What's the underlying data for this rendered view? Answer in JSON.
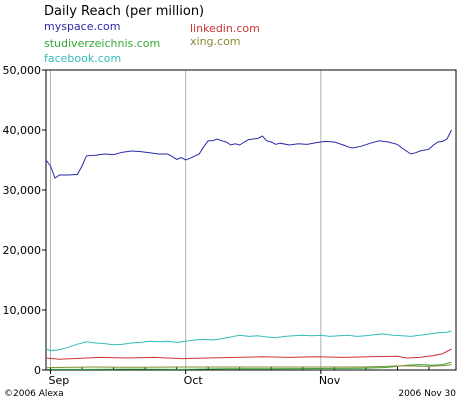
{
  "chart_data": {
    "type": "line",
    "title": "Daily Reach (per million)",
    "y_ticks": [
      "50,000",
      "40,000",
      "30,000",
      "20,000",
      "10,000",
      "0"
    ],
    "y_tick_values": [
      50000,
      40000,
      30000,
      20000,
      10000,
      0
    ],
    "x_ticks": [
      "Sep",
      "Oct",
      "Nov"
    ],
    "x_tick_days": [
      1,
      31,
      61
    ],
    "ylim": [
      0,
      50000
    ],
    "xlim": [
      0,
      91
    ],
    "grid": "vertical lines at month starts",
    "legend": "top-left, two columns",
    "footer_left": "©2006 Alexa",
    "footer_right": "2006 Nov 30",
    "series": [
      {
        "name": "myspace.com",
        "color": "#2a2aa8",
        "points": [
          [
            0,
            35000
          ],
          [
            1,
            34000
          ],
          [
            2,
            32000
          ],
          [
            3,
            32500
          ],
          [
            5,
            32500
          ],
          [
            7,
            32600
          ],
          [
            8,
            34000
          ],
          [
            9,
            35700
          ],
          [
            11,
            35800
          ],
          [
            13,
            36000
          ],
          [
            15,
            35900
          ],
          [
            17,
            36300
          ],
          [
            19,
            36500
          ],
          [
            21,
            36400
          ],
          [
            23,
            36200
          ],
          [
            25,
            36000
          ],
          [
            27,
            36000
          ],
          [
            28,
            35600
          ],
          [
            29,
            35100
          ],
          [
            30,
            35400
          ],
          [
            31,
            35000
          ],
          [
            32,
            35300
          ],
          [
            34,
            36000
          ],
          [
            35,
            37200
          ],
          [
            36,
            38200
          ],
          [
            37,
            38200
          ],
          [
            38,
            38500
          ],
          [
            39,
            38200
          ],
          [
            40,
            38000
          ],
          [
            41,
            37500
          ],
          [
            42,
            37700
          ],
          [
            43,
            37500
          ],
          [
            44,
            38000
          ],
          [
            45,
            38400
          ],
          [
            46,
            38500
          ],
          [
            47,
            38600
          ],
          [
            48,
            39000
          ],
          [
            49,
            38200
          ],
          [
            50,
            38000
          ],
          [
            51,
            37600
          ],
          [
            52,
            37800
          ],
          [
            54,
            37500
          ],
          [
            56,
            37700
          ],
          [
            58,
            37600
          ],
          [
            60,
            37900
          ],
          [
            62,
            38100
          ],
          [
            64,
            38000
          ],
          [
            66,
            37500
          ],
          [
            67,
            37200
          ],
          [
            68,
            37000
          ],
          [
            70,
            37300
          ],
          [
            72,
            37800
          ],
          [
            74,
            38200
          ],
          [
            76,
            38000
          ],
          [
            78,
            37600
          ],
          [
            79,
            37000
          ],
          [
            80,
            36500
          ],
          [
            81,
            36000
          ],
          [
            82,
            36200
          ],
          [
            83,
            36500
          ],
          [
            85,
            36800
          ],
          [
            86,
            37500
          ],
          [
            87,
            38000
          ],
          [
            88,
            38100
          ],
          [
            89,
            38500
          ],
          [
            90,
            40000
          ]
        ]
      },
      {
        "name": "linkedin.com",
        "color": "#cc3333",
        "points": [
          [
            0,
            2000
          ],
          [
            3,
            1800
          ],
          [
            6,
            1900
          ],
          [
            9,
            2000
          ],
          [
            12,
            2100
          ],
          [
            18,
            2000
          ],
          [
            24,
            2100
          ],
          [
            30,
            1900
          ],
          [
            36,
            2000
          ],
          [
            42,
            2100
          ],
          [
            48,
            2200
          ],
          [
            54,
            2100
          ],
          [
            60,
            2200
          ],
          [
            66,
            2100
          ],
          [
            72,
            2200
          ],
          [
            78,
            2300
          ],
          [
            80,
            2000
          ],
          [
            83,
            2100
          ],
          [
            86,
            2400
          ],
          [
            88,
            2700
          ],
          [
            90,
            3500
          ]
        ]
      },
      {
        "name": "studiverzeichnis.com",
        "color": "#33aa33",
        "points": [
          [
            0,
            100
          ],
          [
            10,
            100
          ],
          [
            20,
            150
          ],
          [
            30,
            100
          ],
          [
            40,
            200
          ],
          [
            50,
            200
          ],
          [
            60,
            250
          ],
          [
            70,
            300
          ],
          [
            75,
            400
          ],
          [
            78,
            600
          ],
          [
            80,
            800
          ],
          [
            83,
            900
          ],
          [
            86,
            800
          ],
          [
            88,
            900
          ],
          [
            90,
            1300
          ]
        ]
      },
      {
        "name": "xing.com",
        "color": "#8a8a33",
        "points": [
          [
            0,
            400
          ],
          [
            10,
            500
          ],
          [
            20,
            450
          ],
          [
            30,
            500
          ],
          [
            40,
            500
          ],
          [
            50,
            500
          ],
          [
            60,
            500
          ],
          [
            70,
            500
          ],
          [
            75,
            600
          ],
          [
            80,
            700
          ],
          [
            84,
            600
          ],
          [
            88,
            700
          ],
          [
            90,
            900
          ]
        ]
      },
      {
        "name": "facebook.com",
        "color": "#33bbbb",
        "points": [
          [
            0,
            3600
          ],
          [
            1,
            3200
          ],
          [
            3,
            3400
          ],
          [
            5,
            3800
          ],
          [
            7,
            4300
          ],
          [
            9,
            4700
          ],
          [
            11,
            4500
          ],
          [
            13,
            4400
          ],
          [
            15,
            4200
          ],
          [
            17,
            4300
          ],
          [
            19,
            4500
          ],
          [
            21,
            4600
          ],
          [
            23,
            4800
          ],
          [
            25,
            4700
          ],
          [
            27,
            4800
          ],
          [
            29,
            4600
          ],
          [
            31,
            4800
          ],
          [
            33,
            5000
          ],
          [
            35,
            5100
          ],
          [
            37,
            5000
          ],
          [
            39,
            5200
          ],
          [
            41,
            5500
          ],
          [
            43,
            5800
          ],
          [
            45,
            5600
          ],
          [
            47,
            5700
          ],
          [
            49,
            5500
          ],
          [
            51,
            5400
          ],
          [
            53,
            5600
          ],
          [
            55,
            5700
          ],
          [
            57,
            5800
          ],
          [
            59,
            5700
          ],
          [
            61,
            5800
          ],
          [
            63,
            5600
          ],
          [
            65,
            5700
          ],
          [
            67,
            5800
          ],
          [
            69,
            5600
          ],
          [
            71,
            5700
          ],
          [
            73,
            5900
          ],
          [
            75,
            6000
          ],
          [
            77,
            5800
          ],
          [
            79,
            5700
          ],
          [
            81,
            5600
          ],
          [
            83,
            5800
          ],
          [
            85,
            6000
          ],
          [
            87,
            6200
          ],
          [
            89,
            6300
          ],
          [
            90,
            6500
          ]
        ]
      }
    ]
  }
}
